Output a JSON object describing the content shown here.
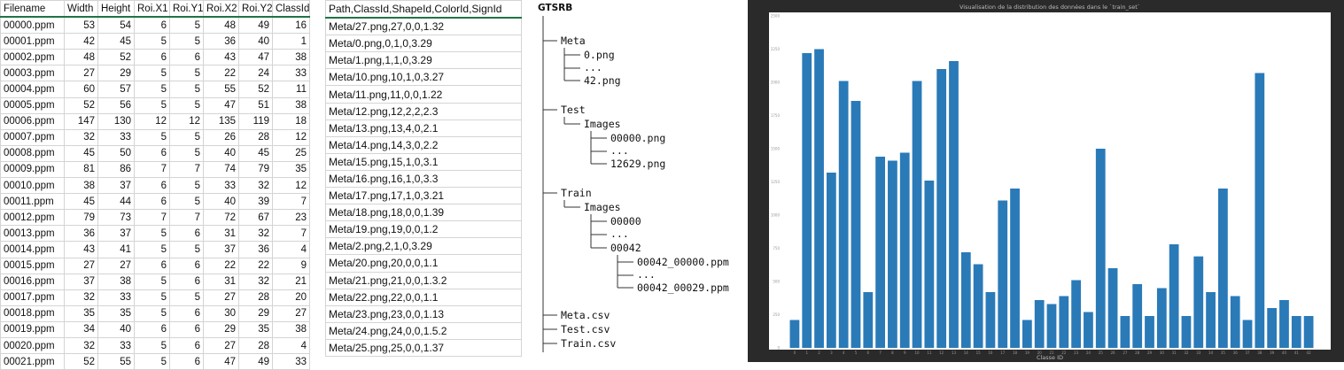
{
  "train_csv": {
    "columns": [
      "Filename",
      "Width",
      "Height",
      "Roi.X1",
      "Roi.Y1",
      "Roi.X2",
      "Roi.Y2",
      "ClassId"
    ],
    "rows": [
      [
        "00000.ppm",
        "53",
        "54",
        "6",
        "5",
        "48",
        "49",
        "16"
      ],
      [
        "00001.ppm",
        "42",
        "45",
        "5",
        "5",
        "36",
        "40",
        "1"
      ],
      [
        "00002.ppm",
        "48",
        "52",
        "6",
        "6",
        "43",
        "47",
        "38"
      ],
      [
        "00003.ppm",
        "27",
        "29",
        "5",
        "5",
        "22",
        "24",
        "33"
      ],
      [
        "00004.ppm",
        "60",
        "57",
        "5",
        "5",
        "55",
        "52",
        "11"
      ],
      [
        "00005.ppm",
        "52",
        "56",
        "5",
        "5",
        "47",
        "51",
        "38"
      ],
      [
        "00006.ppm",
        "147",
        "130",
        "12",
        "12",
        "135",
        "119",
        "18"
      ],
      [
        "00007.ppm",
        "32",
        "33",
        "5",
        "5",
        "26",
        "28",
        "12"
      ],
      [
        "00008.ppm",
        "45",
        "50",
        "6",
        "5",
        "40",
        "45",
        "25"
      ],
      [
        "00009.ppm",
        "81",
        "86",
        "7",
        "7",
        "74",
        "79",
        "35"
      ],
      [
        "00010.ppm",
        "38",
        "37",
        "6",
        "5",
        "33",
        "32",
        "12"
      ],
      [
        "00011.ppm",
        "45",
        "44",
        "6",
        "5",
        "40",
        "39",
        "7"
      ],
      [
        "00012.ppm",
        "79",
        "73",
        "7",
        "7",
        "72",
        "67",
        "23"
      ],
      [
        "00013.ppm",
        "36",
        "37",
        "5",
        "6",
        "31",
        "32",
        "7"
      ],
      [
        "00014.ppm",
        "43",
        "41",
        "5",
        "5",
        "37",
        "36",
        "4"
      ],
      [
        "00015.ppm",
        "27",
        "27",
        "6",
        "6",
        "22",
        "22",
        "9"
      ],
      [
        "00016.ppm",
        "37",
        "38",
        "5",
        "6",
        "31",
        "32",
        "21"
      ],
      [
        "00017.ppm",
        "32",
        "33",
        "5",
        "5",
        "27",
        "28",
        "20"
      ],
      [
        "00018.ppm",
        "35",
        "35",
        "5",
        "6",
        "30",
        "29",
        "27"
      ],
      [
        "00019.ppm",
        "34",
        "40",
        "6",
        "6",
        "29",
        "35",
        "38"
      ],
      [
        "00020.ppm",
        "32",
        "33",
        "5",
        "6",
        "27",
        "28",
        "4"
      ],
      [
        "00021.ppm",
        "52",
        "55",
        "5",
        "6",
        "47",
        "49",
        "33"
      ]
    ]
  },
  "meta_csv": {
    "header": "Path,ClassId,ShapeId,ColorId,SignId",
    "rows": [
      "Meta/27.png,27,0,0,1.32",
      "Meta/0.png,0,1,0,3.29",
      "Meta/1.png,1,1,0,3.29",
      "Meta/10.png,10,1,0,3.27",
      "Meta/11.png,11,0,0,1.22",
      "Meta/12.png,12,2,2,2.3",
      "Meta/13.png,13,4,0,2.1",
      "Meta/14.png,14,3,0,2.2",
      "Meta/15.png,15,1,0,3.1",
      "Meta/16.png,16,1,0,3.3",
      "Meta/17.png,17,1,0,3.21",
      "Meta/18.png,18,0,0,1.39",
      "Meta/19.png,19,0,0,1.2",
      "Meta/2.png,2,1,0,3.29",
      "Meta/20.png,20,0,0,1.1",
      "Meta/21.png,21,0,0,1.3.2",
      "Meta/22.png,22,0,0,1.1",
      "Meta/23.png,23,0,0,1.13",
      "Meta/24.png,24,0,0,1.5.2",
      "Meta/25.png,25,0,0,1.37"
    ]
  },
  "tree": {
    "root": "GTSRB",
    "meta": "Meta",
    "meta_first": "0.png",
    "ellipsis": "...",
    "meta_last": "42.png",
    "test": "Test",
    "test_images": "Images",
    "test_first": "00000.png",
    "test_last": "12629.png",
    "train": "Train",
    "train_images": "Images",
    "train_first": "00000",
    "train_last": "00042",
    "train_file_first": "00042_00000.ppm",
    "train_file_last": "00042_00029.ppm",
    "meta_csv": "Meta.csv",
    "test_csv": "Test.csv",
    "train_csv": "Train.csv"
  },
  "chart_data": {
    "type": "bar",
    "title": "Visualisation de la distribution des données dans le `train_set`",
    "xlabel": "Classe ID",
    "ylabel": "",
    "bar_color": "#2a7ab8",
    "categories": [
      "0",
      "1",
      "2",
      "3",
      "4",
      "5",
      "6",
      "7",
      "8",
      "9",
      "10",
      "11",
      "12",
      "13",
      "14",
      "15",
      "16",
      "17",
      "18",
      "19",
      "20",
      "21",
      "22",
      "23",
      "24",
      "25",
      "26",
      "27",
      "28",
      "29",
      "30",
      "31",
      "32",
      "33",
      "34",
      "35",
      "36",
      "37",
      "38",
      "39",
      "40",
      "41",
      "42"
    ],
    "values": [
      210,
      2220,
      2250,
      1320,
      2010,
      1860,
      420,
      1440,
      1410,
      1470,
      2010,
      1260,
      2100,
      2160,
      720,
      630,
      420,
      1110,
      1200,
      210,
      360,
      330,
      390,
      510,
      270,
      1500,
      600,
      240,
      480,
      240,
      450,
      780,
      240,
      689,
      420,
      1200,
      390,
      210,
      2070,
      300,
      360,
      240,
      240
    ],
    "ylim": [
      0,
      2500
    ],
    "grid": false,
    "legend": "none"
  }
}
